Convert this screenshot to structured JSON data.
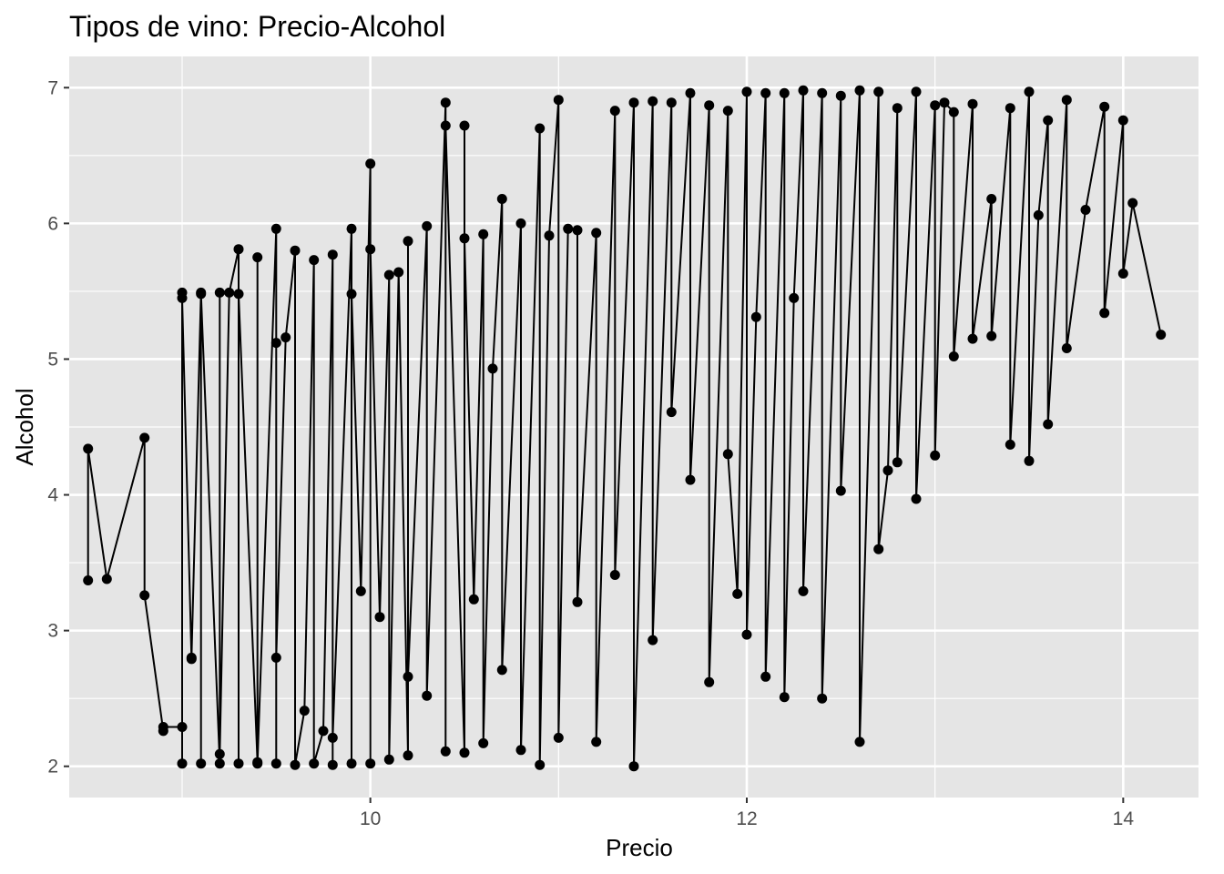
{
  "chart_data": {
    "type": "line",
    "title": "Tipos de vino: Precio-Alcohol",
    "xlabel": "Precio",
    "ylabel": "Alcohol",
    "xlim": [
      8.4,
      14.4
    ],
    "ylim": [
      1.77,
      7.23
    ],
    "x_ticks": [
      10,
      12,
      14
    ],
    "x_ticks_minor": [
      9,
      11,
      13
    ],
    "y_ticks": [
      2,
      3,
      4,
      5,
      6,
      7
    ],
    "y_ticks_minor": [
      2.5,
      3.5,
      4.5,
      5.5,
      6.5
    ],
    "grid": true,
    "legend": "none",
    "colors": {
      "panel": "#e5e5e5",
      "grid": "#ffffff",
      "mark": "#000000",
      "tick_text": "#4d4d4d"
    },
    "series": [
      {
        "x": [
          8.5,
          8.5,
          8.6,
          8.8,
          8.8,
          8.9,
          8.9,
          9.0,
          9.0,
          9.0,
          9.0,
          9.05,
          9.05,
          9.1,
          9.1,
          9.1,
          9.2,
          9.2,
          9.2,
          9.25,
          9.3,
          9.3,
          9.3,
          9.4,
          9.4,
          9.4,
          9.5,
          9.5,
          9.5,
          9.5,
          9.55,
          9.6,
          9.6,
          9.65,
          9.7,
          9.7,
          9.75,
          9.8,
          9.8,
          9.8,
          9.9,
          9.9,
          9.9,
          9.95,
          10.0,
          10.0,
          10.0,
          10.05,
          10.1,
          10.1,
          10.15,
          10.2,
          10.2,
          10.2,
          10.3,
          10.3,
          10.4,
          10.4,
          10.4,
          10.5,
          10.5,
          10.5,
          10.55,
          10.6,
          10.6,
          10.65,
          10.7,
          10.7,
          10.8,
          10.8,
          10.9,
          10.9,
          10.95,
          11.0,
          11.0,
          11.05,
          11.1,
          11.1,
          11.2,
          11.2,
          11.3,
          11.3,
          11.4,
          11.4,
          11.5,
          11.5,
          11.6,
          11.6,
          11.7,
          11.7,
          11.8,
          11.8,
          11.9,
          11.9,
          11.95,
          12.0,
          12.0,
          12.05,
          12.1,
          12.1,
          12.2,
          12.2,
          12.25,
          12.3,
          12.3,
          12.4,
          12.4,
          12.5,
          12.5,
          12.6,
          12.6,
          12.7,
          12.7,
          12.75,
          12.8,
          12.8,
          12.9,
          12.9,
          13.0,
          13.0,
          13.05,
          13.1,
          13.1,
          13.2,
          13.2,
          13.3,
          13.3,
          13.4,
          13.4,
          13.5,
          13.5,
          13.55,
          13.6,
          13.6,
          13.7,
          13.7,
          13.8,
          13.9,
          13.9,
          14.0,
          14.0,
          14.05,
          14.2
        ],
        "y": [
          3.37,
          4.34,
          3.38,
          4.42,
          3.26,
          2.26,
          2.29,
          2.29,
          5.49,
          2.02,
          5.45,
          2.79,
          2.8,
          5.49,
          2.02,
          5.48,
          2.02,
          5.49,
          2.09,
          5.49,
          5.81,
          2.02,
          5.48,
          2.03,
          5.75,
          2.02,
          5.96,
          2.02,
          5.12,
          2.8,
          5.16,
          5.8,
          2.01,
          2.41,
          5.73,
          2.02,
          2.26,
          5.77,
          2.01,
          2.21,
          5.96,
          2.02,
          5.48,
          3.29,
          6.44,
          2.02,
          5.81,
          3.1,
          5.62,
          2.05,
          5.64,
          2.08,
          5.87,
          2.66,
          5.98,
          2.52,
          6.89,
          2.11,
          6.72,
          2.1,
          6.72,
          5.89,
          3.23,
          5.92,
          2.17,
          4.93,
          6.18,
          2.71,
          6.0,
          2.12,
          6.7,
          2.01,
          5.91,
          6.91,
          2.21,
          5.96,
          5.95,
          3.21,
          5.93,
          2.18,
          6.83,
          3.41,
          6.89,
          2.0,
          6.9,
          2.93,
          6.89,
          4.61,
          6.96,
          4.11,
          6.87,
          2.62,
          6.83,
          4.3,
          3.27,
          6.97,
          2.97,
          5.31,
          6.96,
          2.66,
          6.96,
          2.51,
          5.45,
          6.98,
          3.29,
          6.96,
          2.5,
          6.94,
          4.03,
          6.98,
          2.18,
          6.97,
          3.6,
          4.18,
          6.85,
          4.24,
          6.97,
          3.97,
          6.87,
          4.29,
          6.89,
          6.82,
          5.02,
          6.88,
          5.15,
          6.18,
          5.17,
          6.85,
          4.37,
          6.97,
          4.25,
          6.06,
          6.76,
          4.52,
          6.91,
          5.08,
          6.1,
          6.86,
          5.34,
          6.76,
          5.63,
          6.15,
          5.18
        ]
      }
    ]
  }
}
